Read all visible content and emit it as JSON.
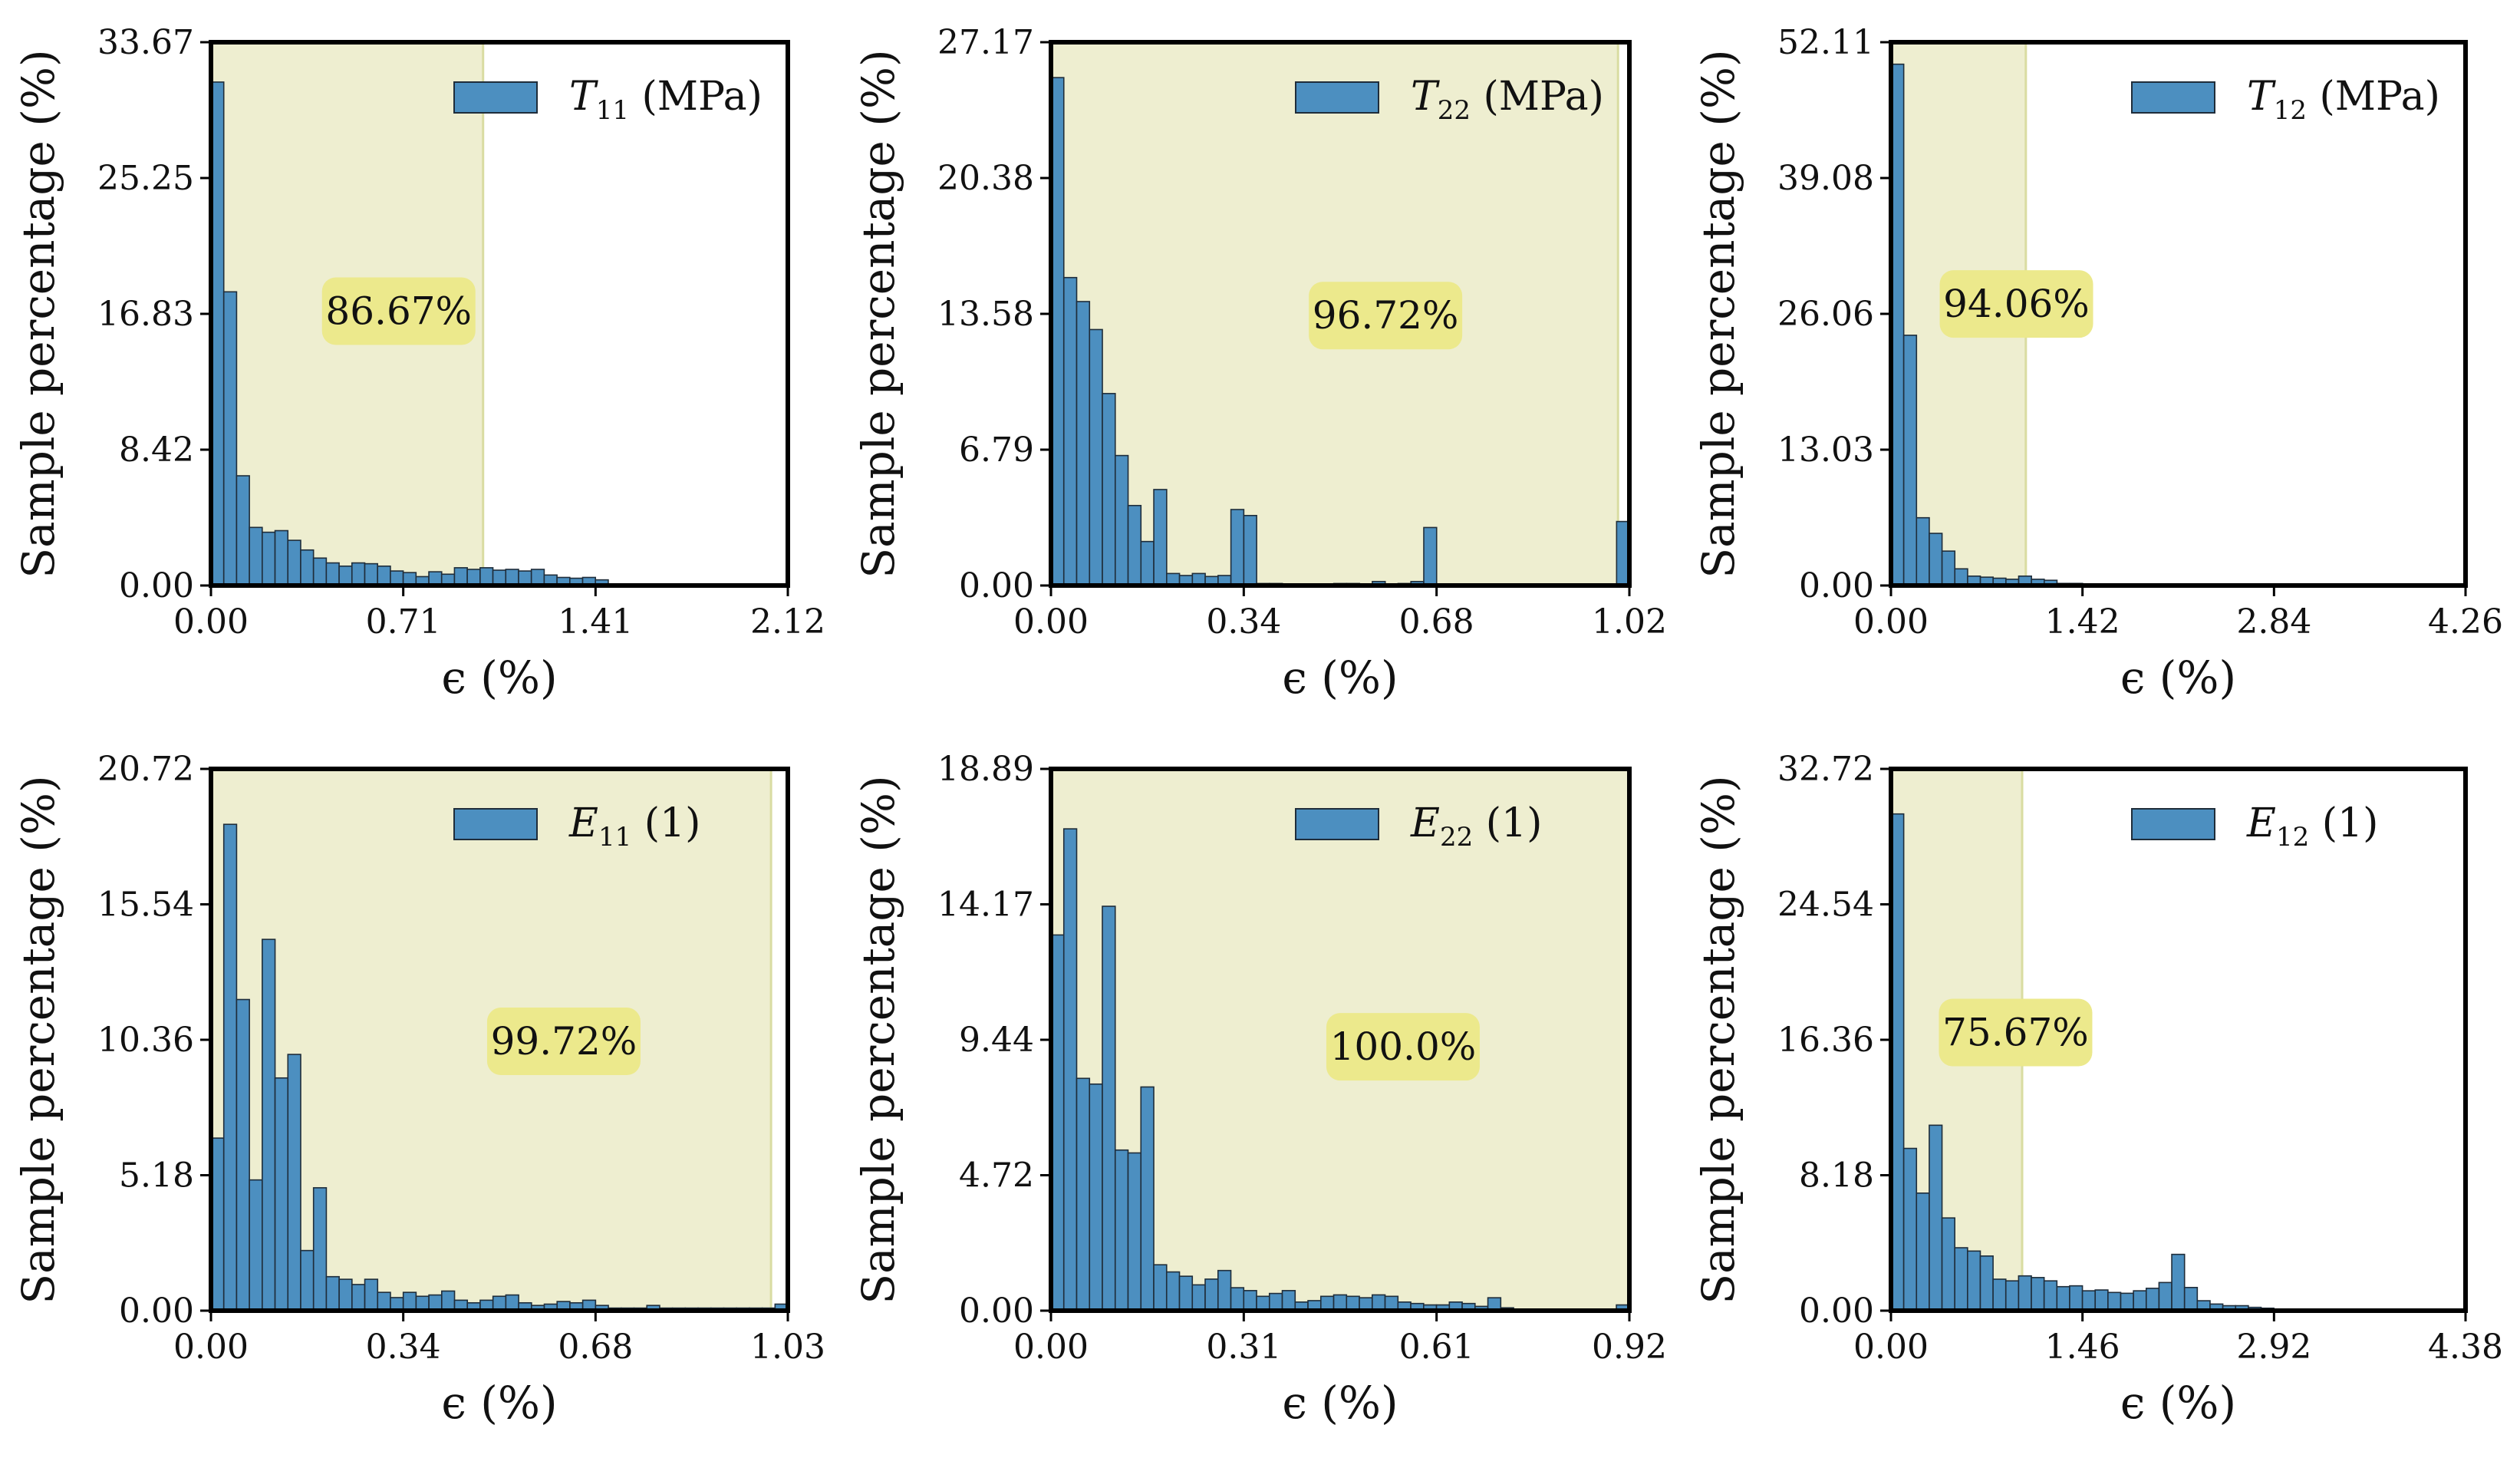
{
  "colors": {
    "bar_fill": "#4c8fc0",
    "bar_edge": "#1f2d3a",
    "shade": "#eeeed0",
    "shade_edge": "#d9dca2",
    "badge": "#ece98c",
    "axis": "#000000"
  },
  "chart_data": [
    {
      "type": "bar",
      "panel": "T11",
      "legend": {
        "symbol": "T",
        "subscript": "11",
        "unit": "(MPa)",
        "position": "top-right"
      },
      "xlabel": "ϵ (%)",
      "ylabel": "Sample percentage (%)",
      "xlim": [
        0,
        2.12
      ],
      "ylim": [
        0,
        33.67
      ],
      "xticks": [
        "0.00",
        "0.71",
        "1.41",
        "2.12"
      ],
      "yticks": [
        "0.00",
        "8.42",
        "16.83",
        "25.25",
        "33.67"
      ],
      "shade_to": 1.0,
      "annotation": {
        "text": "86.67%",
        "x": 0.69,
        "y": 17.0
      },
      "bin_width": 0.0471,
      "values": [
        31.2,
        18.2,
        6.8,
        3.6,
        3.3,
        3.4,
        2.8,
        2.2,
        1.7,
        1.4,
        1.2,
        1.4,
        1.35,
        1.2,
        0.9,
        0.8,
        0.55,
        0.85,
        0.7,
        1.1,
        1.0,
        1.1,
        0.95,
        1.0,
        0.9,
        1.0,
        0.65,
        0.5,
        0.45,
        0.5,
        0.35,
        0,
        0,
        0,
        0,
        0,
        0,
        0,
        0,
        0,
        0,
        0,
        0,
        0,
        0
      ]
    },
    {
      "type": "bar",
      "panel": "T22",
      "legend": {
        "symbol": "T",
        "subscript": "22",
        "unit": "(MPa)",
        "position": "top-right"
      },
      "xlabel": "ϵ (%)",
      "ylabel": "Sample percentage (%)",
      "xlim": [
        0,
        1.02
      ],
      "ylim": [
        0,
        27.17
      ],
      "xticks": [
        "0.00",
        "0.34",
        "0.68",
        "1.02"
      ],
      "yticks": [
        "0.00",
        "6.79",
        "13.58",
        "20.38",
        "27.17"
      ],
      "shade_to": 1.0,
      "annotation": {
        "text": "96.72%",
        "x": 0.59,
        "y": 13.5
      },
      "bin_width": 0.02267,
      "values": [
        25.4,
        15.4,
        14.2,
        12.8,
        9.6,
        6.5,
        4.0,
        2.2,
        4.8,
        0.6,
        0.5,
        0.6,
        0.45,
        0.5,
        3.8,
        3.5,
        0.1,
        0.1,
        0.05,
        0.05,
        0.05,
        0.05,
        0.1,
        0.1,
        0.05,
        0.2,
        0.05,
        0.1,
        0.2,
        2.9,
        0.05,
        0.05,
        0.05,
        0.05,
        0.05,
        0,
        0,
        0,
        0,
        0,
        0,
        0,
        0,
        0,
        3.2
      ]
    },
    {
      "type": "bar",
      "panel": "T12",
      "legend": {
        "symbol": "T",
        "subscript": "12",
        "unit": "(MPa)",
        "position": "top-right"
      },
      "xlabel": "ϵ (%)",
      "ylabel": "Sample percentage (%)",
      "xlim": [
        0,
        4.26
      ],
      "ylim": [
        0,
        52.11
      ],
      "xticks": [
        "0.00",
        "1.42",
        "2.84",
        "4.26"
      ],
      "yticks": [
        "0.00",
        "13.03",
        "26.06",
        "39.08",
        "52.11"
      ],
      "shade_to": 1.0,
      "annotation": {
        "text": "94.06%",
        "x": 0.93,
        "y": 27.0
      },
      "bin_width": 0.0947,
      "values": [
        50.0,
        24.0,
        6.5,
        5.0,
        3.3,
        1.6,
        0.9,
        0.8,
        0.7,
        0.6,
        0.9,
        0.6,
        0.5,
        0.2,
        0.2,
        0.1,
        0.1,
        0,
        0,
        0,
        0,
        0,
        0,
        0,
        0,
        0,
        0,
        0,
        0,
        0,
        0,
        0,
        0,
        0,
        0,
        0,
        0,
        0,
        0,
        0,
        0,
        0,
        0,
        0,
        0
      ]
    },
    {
      "type": "bar",
      "panel": "E11",
      "legend": {
        "symbol": "E",
        "subscript": "11",
        "unit": "(1)",
        "position": "top-right"
      },
      "xlabel": "ϵ (%)",
      "ylabel": "Sample percentage (%)",
      "xlim": [
        0,
        1.03
      ],
      "ylim": [
        0,
        20.72
      ],
      "xticks": [
        "0.00",
        "0.34",
        "0.68",
        "1.03"
      ],
      "yticks": [
        "0.00",
        "5.18",
        "10.36",
        "15.54",
        "20.72"
      ],
      "shade_to": 1.0,
      "annotation": {
        "text": "99.72%",
        "x": 0.63,
        "y": 10.3
      },
      "bin_width": 0.02289,
      "values": [
        6.6,
        18.6,
        11.9,
        5.0,
        14.2,
        8.9,
        9.8,
        2.3,
        4.7,
        1.3,
        1.2,
        1.0,
        1.2,
        0.7,
        0.5,
        0.7,
        0.55,
        0.6,
        0.75,
        0.4,
        0.3,
        0.4,
        0.55,
        0.6,
        0.3,
        0.2,
        0.25,
        0.35,
        0.3,
        0.4,
        0.2,
        0.1,
        0.1,
        0.1,
        0.2,
        0.1,
        0.1,
        0.1,
        0.1,
        0.1,
        0.1,
        0.1,
        0.1,
        0.1,
        0.25
      ]
    },
    {
      "type": "bar",
      "panel": "E22",
      "legend": {
        "symbol": "E",
        "subscript": "22",
        "unit": "(1)",
        "position": "top-right"
      },
      "xlabel": "ϵ (%)",
      "ylabel": "Sample percentage (%)",
      "xlim": [
        0,
        0.92
      ],
      "ylim": [
        0,
        18.89
      ],
      "xticks": [
        "0.00",
        "0.31",
        "0.61",
        "0.92"
      ],
      "yticks": [
        "0.00",
        "4.72",
        "9.44",
        "14.17",
        "18.89"
      ],
      "shade_to": 1.0,
      "annotation": {
        "text": "100.0%",
        "x": 0.56,
        "y": 9.2
      },
      "bin_width": 0.02044,
      "values": [
        13.1,
        16.8,
        8.1,
        7.9,
        14.1,
        5.6,
        5.5,
        7.8,
        1.6,
        1.35,
        1.2,
        0.9,
        1.1,
        1.4,
        0.8,
        0.7,
        0.5,
        0.6,
        0.7,
        0.3,
        0.35,
        0.5,
        0.55,
        0.5,
        0.45,
        0.55,
        0.5,
        0.3,
        0.25,
        0.2,
        0.2,
        0.3,
        0.25,
        0.15,
        0.45,
        0.1,
        0.05,
        0.05,
        0.05,
        0.05,
        0.05,
        0.05,
        0.05,
        0.05,
        0.2
      ]
    },
    {
      "type": "bar",
      "panel": "E12",
      "legend": {
        "symbol": "E",
        "subscript": "12",
        "unit": "(1)",
        "position": "top-right"
      },
      "xlabel": "ϵ (%)",
      "ylabel": "Sample percentage (%)",
      "xlim": [
        0,
        4.38
      ],
      "ylim": [
        0,
        32.72
      ],
      "xticks": [
        "0.00",
        "1.46",
        "2.92",
        "4.38"
      ],
      "yticks": [
        "0.00",
        "8.18",
        "16.36",
        "24.54",
        "32.72"
      ],
      "shade_to": 1.0,
      "annotation": {
        "text": "75.67%",
        "x": 0.95,
        "y": 16.8
      },
      "bin_width": 0.0973,
      "values": [
        30.0,
        9.8,
        7.1,
        11.2,
        5.6,
        3.8,
        3.6,
        3.3,
        1.9,
        1.8,
        2.1,
        2.0,
        1.8,
        1.45,
        1.5,
        1.2,
        1.25,
        1.1,
        1.05,
        1.2,
        1.35,
        1.7,
        3.4,
        1.4,
        0.6,
        0.4,
        0.3,
        0.3,
        0.2,
        0.15,
        0.1,
        0.05,
        0.05,
        0,
        0,
        0,
        0,
        0,
        0,
        0,
        0,
        0,
        0,
        0,
        0
      ]
    }
  ]
}
